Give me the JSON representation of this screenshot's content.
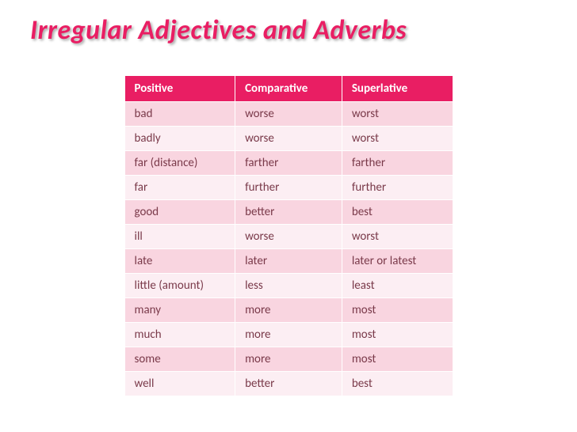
{
  "title": "Irregular Adjectives and Adverbs",
  "table": {
    "columns": [
      "Positive",
      "Comparative",
      "Superlative"
    ],
    "rows": [
      [
        "bad",
        "worse",
        "worst"
      ],
      [
        "badly",
        "worse",
        "worst"
      ],
      [
        "far (distance)",
        "farther",
        "farther"
      ],
      [
        "far",
        "further",
        "further"
      ],
      [
        "good",
        "better",
        "best"
      ],
      [
        "ill",
        "worse",
        "worst"
      ],
      [
        "late",
        "later",
        "later or latest"
      ],
      [
        "little (amount)",
        "less",
        "least"
      ],
      [
        "many",
        "more",
        "most"
      ],
      [
        "much",
        "more",
        "most"
      ],
      [
        "some",
        "more",
        "most"
      ],
      [
        "well",
        "better",
        "best"
      ]
    ],
    "header_bg": "#e91e63",
    "header_text_color": "#ffffff",
    "row_odd_bg": "#f9d5e0",
    "row_even_bg": "#fceef3",
    "cell_text_color": "#7a3a4a",
    "title_color": "#e91e63",
    "font_family": "Calibri",
    "title_fontsize": 34,
    "cell_fontsize": 15
  }
}
